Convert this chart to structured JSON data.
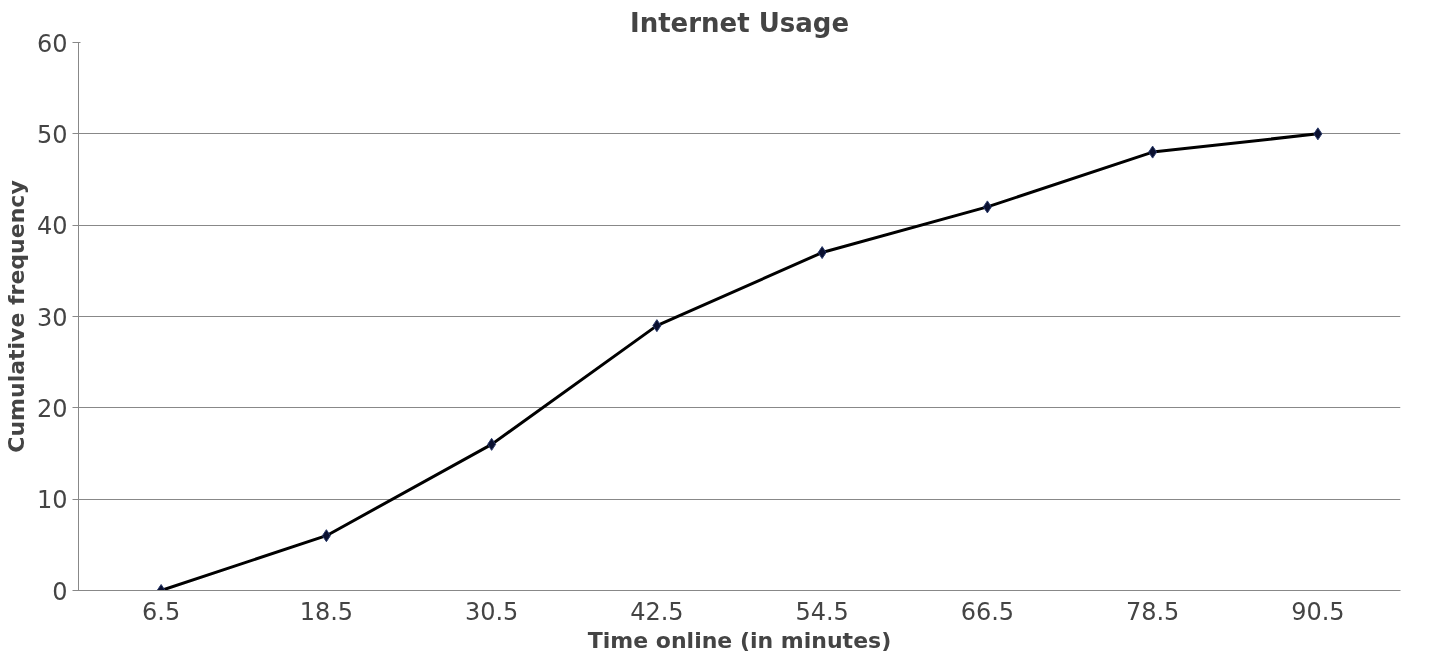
{
  "chart_data": {
    "type": "line",
    "title": "Internet Usage",
    "xlabel": "Time online (in minutes)",
    "ylabel": "Cumulative frequency",
    "categories": [
      "6.5",
      "18.5",
      "30.5",
      "42.5",
      "54.5",
      "66.5",
      "78.5",
      "90.5"
    ],
    "series": [
      {
        "color": "#000000",
        "values": [
          0,
          6,
          16,
          29,
          37,
          42,
          48,
          50
        ]
      }
    ],
    "ylim": [
      0,
      60
    ],
    "yticks": [
      0,
      10,
      20,
      30,
      40,
      50,
      60
    ],
    "grid": "y",
    "marker": "diamond"
  }
}
